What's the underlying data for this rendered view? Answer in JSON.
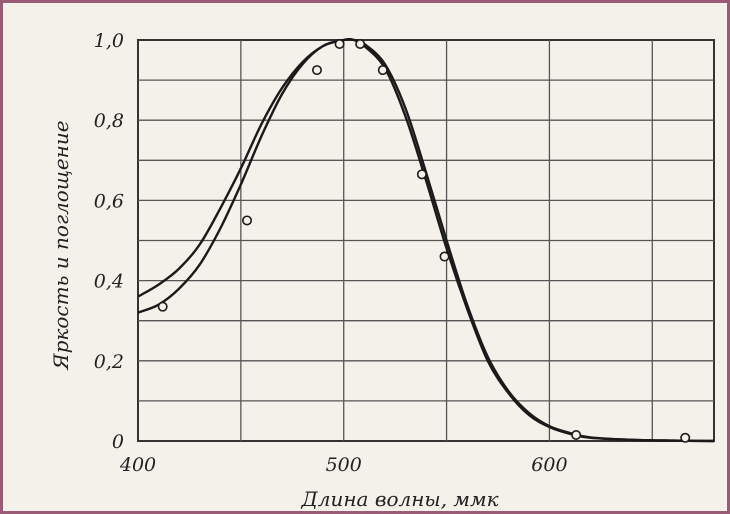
{
  "chart_data": {
    "type": "line",
    "title": "",
    "xlabel": "Длина волны, ммк",
    "ylabel": "Яркость и поглощение",
    "xlim": [
      400,
      680
    ],
    "ylim": [
      0,
      1.0
    ],
    "grid": true,
    "x_ticks": [
      {
        "value": 400,
        "label": "400"
      },
      {
        "value": 500,
        "label": "500"
      },
      {
        "value": 600,
        "label": "600"
      }
    ],
    "y_ticks": [
      {
        "value": 0,
        "label": "0"
      },
      {
        "value": 0.2,
        "label": "0,2"
      },
      {
        "value": 0.4,
        "label": "0,4"
      },
      {
        "value": 0.6,
        "label": "0,6"
      },
      {
        "value": 0.8,
        "label": "0,8"
      },
      {
        "value": 1.0,
        "label": "1,0"
      }
    ],
    "series": [
      {
        "kind": "line",
        "points": [
          [
            400,
            0.36
          ],
          [
            410,
            0.39
          ],
          [
            420,
            0.43
          ],
          [
            430,
            0.49
          ],
          [
            440,
            0.58
          ],
          [
            450,
            0.68
          ],
          [
            460,
            0.79
          ],
          [
            470,
            0.88
          ],
          [
            480,
            0.945
          ],
          [
            490,
            0.985
          ],
          [
            500,
            1.0
          ],
          [
            505,
            1.0
          ],
          [
            510,
            0.985
          ],
          [
            520,
            0.93
          ],
          [
            530,
            0.81
          ],
          [
            540,
            0.65
          ],
          [
            550,
            0.48
          ],
          [
            560,
            0.33
          ],
          [
            570,
            0.2
          ],
          [
            580,
            0.12
          ],
          [
            590,
            0.065
          ],
          [
            600,
            0.035
          ],
          [
            610,
            0.018
          ],
          [
            620,
            0.008
          ],
          [
            640,
            0.003
          ],
          [
            660,
            0.001
          ],
          [
            680,
            0.0
          ]
        ]
      },
      {
        "kind": "line",
        "points": [
          [
            400,
            0.32
          ],
          [
            410,
            0.34
          ],
          [
            420,
            0.38
          ],
          [
            430,
            0.44
          ],
          [
            440,
            0.53
          ],
          [
            450,
            0.64
          ],
          [
            460,
            0.76
          ],
          [
            470,
            0.865
          ],
          [
            480,
            0.94
          ],
          [
            490,
            0.985
          ],
          [
            500,
            1.0
          ],
          [
            505,
            1.0
          ],
          [
            510,
            0.99
          ],
          [
            520,
            0.94
          ],
          [
            530,
            0.83
          ],
          [
            540,
            0.67
          ],
          [
            550,
            0.5
          ],
          [
            560,
            0.34
          ],
          [
            570,
            0.21
          ],
          [
            580,
            0.125
          ],
          [
            590,
            0.07
          ],
          [
            600,
            0.037
          ],
          [
            610,
            0.02
          ],
          [
            620,
            0.009
          ],
          [
            640,
            0.003
          ],
          [
            660,
            0.001
          ],
          [
            680,
            0.0
          ]
        ]
      },
      {
        "kind": "scatter",
        "points": [
          [
            412,
            0.335
          ],
          [
            453,
            0.55
          ],
          [
            487,
            0.925
          ],
          [
            498,
            0.99
          ],
          [
            508,
            0.99
          ],
          [
            519,
            0.925
          ],
          [
            538,
            0.665
          ],
          [
            549,
            0.46
          ],
          [
            613,
            0.015
          ],
          [
            666,
            0.008
          ]
        ]
      }
    ]
  }
}
